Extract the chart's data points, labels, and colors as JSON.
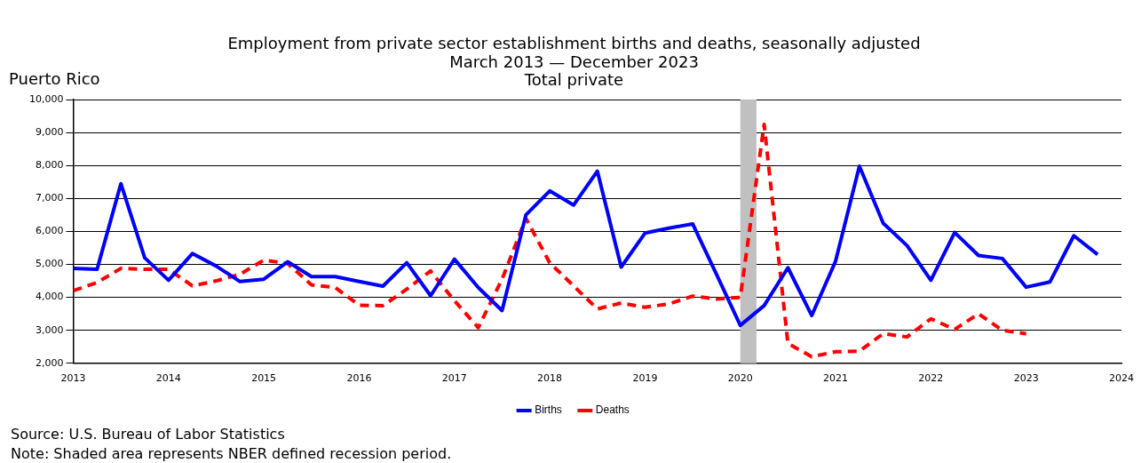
{
  "chart_data": {
    "type": "line",
    "title": "Employment from private sector establishment births and deaths, seasonally adjusted",
    "subtitle": "March 2013 — December 2023\nTotal private",
    "ylabel": "Puerto Rico",
    "x": [
      2013,
      2013.25,
      2013.5,
      2013.75,
      2014,
      2014.25,
      2014.5,
      2014.75,
      2015,
      2015.25,
      2015.5,
      2015.75,
      2016,
      2016.25,
      2016.5,
      2016.75,
      2017,
      2017.25,
      2017.5,
      2017.75,
      2018,
      2018.25,
      2018.5,
      2018.75,
      2019,
      2019.25,
      2019.5,
      2019.75,
      2020,
      2020.25,
      2020.5,
      2020.75,
      2021,
      2021.25,
      2021.5,
      2021.75,
      2022,
      2022.25,
      2022.5,
      2022.75,
      2023,
      2023.25,
      2023.5,
      2023.75
    ],
    "series": [
      {
        "name": "Births",
        "color": "#0000ff",
        "line_style": "solid",
        "values": [
          4880,
          4850,
          7450,
          5200,
          4520,
          5330,
          4950,
          4480,
          4550,
          5080,
          4630,
          4630,
          4480,
          4340,
          5050,
          4050,
          5160,
          4300,
          3600,
          6500,
          7230,
          6800,
          7830,
          4920,
          5950,
          6100,
          6230,
          4700,
          3150,
          3750,
          4900,
          3450,
          5100,
          7980,
          6250,
          5570,
          4520,
          5970,
          5270,
          5180,
          4310,
          4470,
          5870,
          5300
        ]
      },
      {
        "name": "Deaths",
        "color": "#ff0000",
        "line_style": "dashed",
        "values": [
          4200,
          4450,
          4880,
          4850,
          4850,
          4350,
          4500,
          4700,
          5130,
          5030,
          4380,
          4300,
          3760,
          3750,
          4250,
          4800,
          3900,
          3080,
          4550,
          6400,
          5050,
          4350,
          3650,
          3830,
          3700,
          3800,
          4040,
          3950,
          4000,
          9250,
          2600,
          2200,
          2350,
          2370,
          2900,
          2800,
          3350,
          3030,
          3500,
          3000,
          2900,
          null,
          null,
          null
        ]
      }
    ],
    "xlim": [
      2013,
      2024
    ],
    "xticks": [
      2013,
      2014,
      2015,
      2016,
      2017,
      2018,
      2019,
      2020,
      2021,
      2022,
      2023,
      2024
    ],
    "ylim": [
      2000,
      10000
    ],
    "yticks": [
      {
        "value": 2000,
        "label": "2,000"
      },
      {
        "value": 3000,
        "label": "3,000"
      },
      {
        "value": 4000,
        "label": "4,000"
      },
      {
        "value": 5000,
        "label": "5,000"
      },
      {
        "value": 6000,
        "label": "6,000"
      },
      {
        "value": 7000,
        "label": "7,000"
      },
      {
        "value": 8000,
        "label": "8,000"
      },
      {
        "value": 9000,
        "label": "9,000"
      },
      {
        "value": 10000,
        "label": "10,000"
      }
    ],
    "bands": [
      {
        "axis": "x",
        "from": 2020,
        "to": 2020.17,
        "color": "#c0c0c0"
      }
    ],
    "grid": "y",
    "legend": "bottom",
    "marker": "none",
    "annotations": [
      "Source: U.S. Bureau of Labor Statistics",
      "Note: Shaded area represents NBER defined recession period."
    ]
  }
}
